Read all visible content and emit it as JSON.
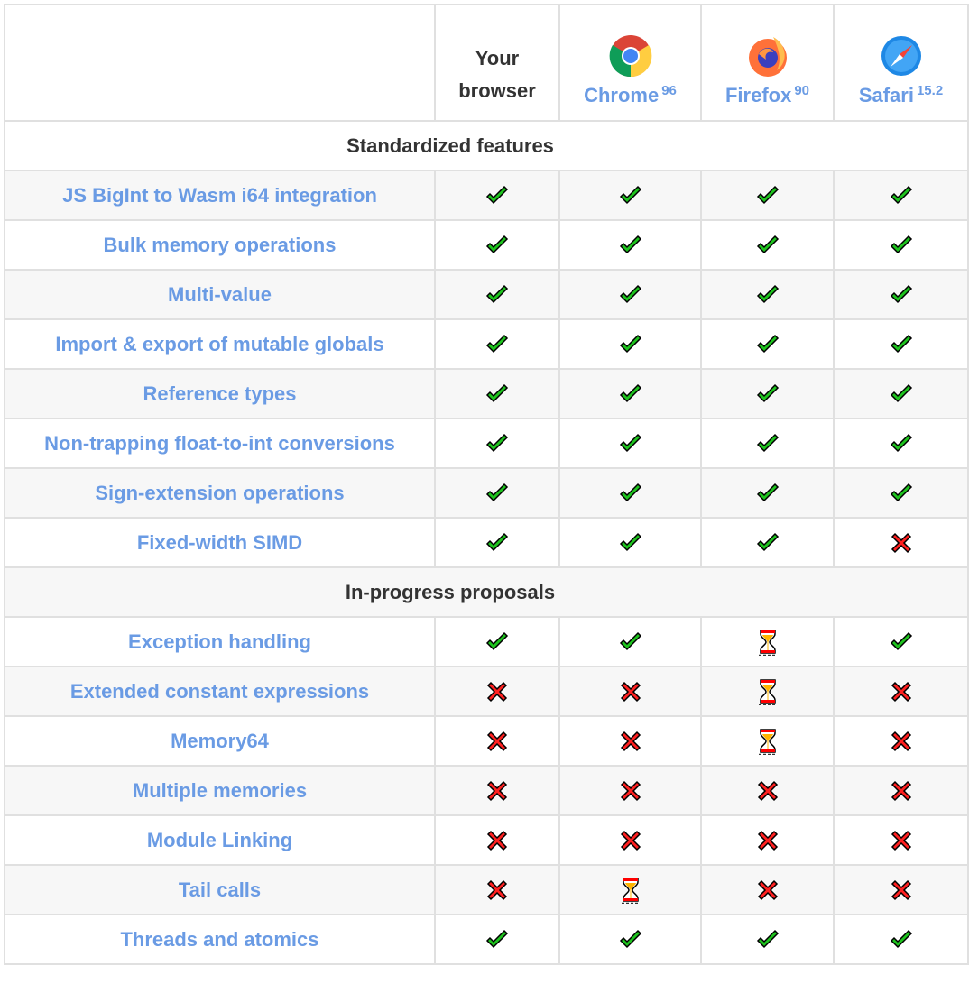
{
  "header": {
    "your_browser": "Your browser",
    "browsers": [
      {
        "name": "Chrome",
        "version": "96",
        "icon": "chrome-logo-icon"
      },
      {
        "name": "Firefox",
        "version": "90",
        "icon": "firefox-logo-icon"
      },
      {
        "name": "Safari",
        "version": "15.2",
        "icon": "safari-logo-icon"
      }
    ]
  },
  "colors": {
    "link": "#6a9be4",
    "yes": "#1ec31e",
    "no": "#ff2020",
    "progress": "#ffb400"
  },
  "sections": [
    {
      "title": "Standardized features",
      "features": [
        {
          "name": "JS BigInt to Wasm i64 integration",
          "status": [
            "yes",
            "yes",
            "yes",
            "yes"
          ]
        },
        {
          "name": "Bulk memory operations",
          "status": [
            "yes",
            "yes",
            "yes",
            "yes"
          ]
        },
        {
          "name": "Multi-value",
          "status": [
            "yes",
            "yes",
            "yes",
            "yes"
          ]
        },
        {
          "name": "Import & export of mutable globals",
          "status": [
            "yes",
            "yes",
            "yes",
            "yes"
          ]
        },
        {
          "name": "Reference types",
          "status": [
            "yes",
            "yes",
            "yes",
            "yes"
          ]
        },
        {
          "name": "Non-trapping float-to-int conversions",
          "status": [
            "yes",
            "yes",
            "yes",
            "yes"
          ]
        },
        {
          "name": "Sign-extension operations",
          "status": [
            "yes",
            "yes",
            "yes",
            "yes"
          ]
        },
        {
          "name": "Fixed-width SIMD",
          "status": [
            "yes",
            "yes",
            "yes",
            "no"
          ]
        }
      ]
    },
    {
      "title": "In-progress proposals",
      "features": [
        {
          "name": "Exception handling",
          "status": [
            "yes",
            "yes",
            "progress",
            "yes"
          ]
        },
        {
          "name": "Extended constant expressions",
          "status": [
            "no",
            "no",
            "progress",
            "no"
          ]
        },
        {
          "name": "Memory64",
          "status": [
            "no",
            "no",
            "progress",
            "no"
          ]
        },
        {
          "name": "Multiple memories",
          "status": [
            "no",
            "no",
            "no",
            "no"
          ]
        },
        {
          "name": "Module Linking",
          "status": [
            "no",
            "no",
            "no",
            "no"
          ]
        },
        {
          "name": "Tail calls",
          "status": [
            "no",
            "progress",
            "no",
            "no"
          ]
        },
        {
          "name": "Threads and atomics",
          "status": [
            "yes",
            "yes",
            "yes",
            "yes"
          ]
        }
      ]
    }
  ]
}
